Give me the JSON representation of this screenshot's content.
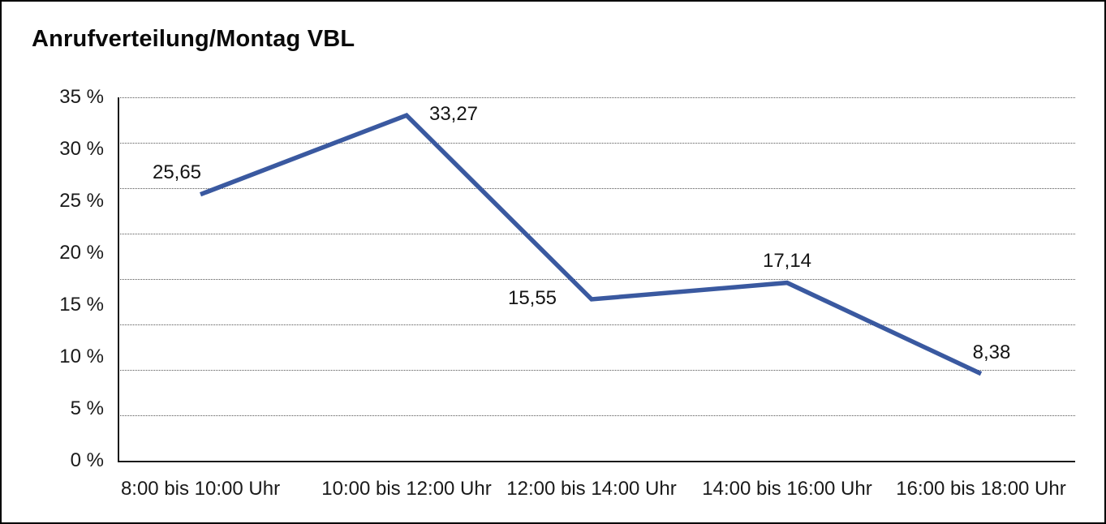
{
  "title": "Anrufverteilung/Montag VBL",
  "chart_data": {
    "type": "line",
    "title": "Anrufverteilung/Montag VBL",
    "categories": [
      "8:00 bis 10:00 Uhr",
      "10:00 bis 12:00 Uhr",
      "12:00 bis 14:00 Uhr",
      "14:00 bis 16:00 Uhr",
      "16:00 bis 18:00 Uhr"
    ],
    "values": [
      25.65,
      33.27,
      15.55,
      17.14,
      8.38
    ],
    "point_labels": [
      "25,65",
      "33,27",
      "15,55",
      "17,14",
      "8,38"
    ],
    "xlabel": "",
    "ylabel": "",
    "ylim": [
      0,
      35
    ],
    "ytick_labels": [
      "35 %",
      "30 %",
      "25 %",
      "20 %",
      "15 %",
      "10 %",
      "5 %",
      "0 %"
    ],
    "grid": "horizontal-dotted",
    "legend_position": "none",
    "line_color": "#3A59A0",
    "axis_color": "#1a1a1a",
    "gridline_color": "#555555",
    "unit": "%"
  }
}
